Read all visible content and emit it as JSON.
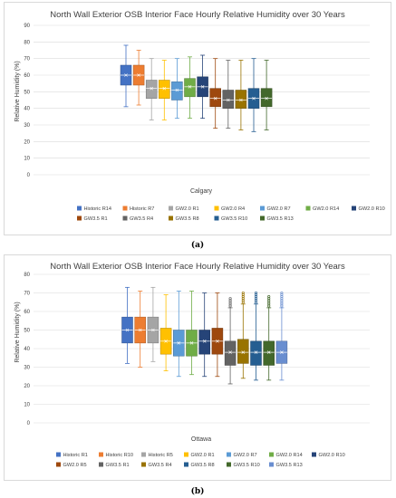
{
  "chart_data": [
    {
      "type": "box",
      "title": "North Wall Exterior OSB Interior Face Hourly Relative Humidity over 30 Years",
      "ylabel": "Relative Humidity (%)",
      "xlabel": "Calgary",
      "ylim": [
        0,
        90
      ],
      "yticks": [
        0,
        10,
        20,
        30,
        40,
        50,
        60,
        70,
        80,
        90
      ],
      "grid": true,
      "legend_position": "bottom",
      "series": [
        {
          "name": "Historic R14",
          "color": "#4472C4",
          "min": 41,
          "q1": 54,
          "median": 60,
          "q3": 66,
          "max": 78,
          "mean": 60
        },
        {
          "name": "Historic R7",
          "color": "#ED7D31",
          "min": 42,
          "q1": 54,
          "median": 60,
          "q3": 66,
          "max": 75,
          "mean": 60
        },
        {
          "name": "GW2.0 R1",
          "color": "#A5A5A5",
          "min": 33,
          "q1": 46,
          "median": 52,
          "q3": 57,
          "max": 70,
          "mean": 52
        },
        {
          "name": "GW2.0 R4",
          "color": "#FFC000",
          "min": 33,
          "q1": 46,
          "median": 52,
          "q3": 57,
          "max": 69,
          "mean": 52
        },
        {
          "name": "GW2.0 R7",
          "color": "#5B9BD5",
          "min": 34,
          "q1": 45,
          "median": 51,
          "q3": 56,
          "max": 70,
          "mean": 51
        },
        {
          "name": "GW2.0 R14",
          "color": "#70AD47",
          "min": 34,
          "q1": 47,
          "median": 53,
          "q3": 58,
          "max": 71,
          "mean": 53
        },
        {
          "name": "GW2.0 R10",
          "color": "#264478",
          "min": 34,
          "q1": 47,
          "median": 53,
          "q3": 59,
          "max": 72,
          "mean": 53
        },
        {
          "name": "GW3.5 R1",
          "color": "#9E480E",
          "min": 28,
          "q1": 41,
          "median": 46,
          "q3": 52,
          "max": 70,
          "mean": 46
        },
        {
          "name": "GW3.5 R4",
          "color": "#636363",
          "min": 28,
          "q1": 40,
          "median": 45,
          "q3": 51,
          "max": 69,
          "mean": 45
        },
        {
          "name": "GW3.5 R8",
          "color": "#997300",
          "min": 27,
          "q1": 40,
          "median": 45,
          "q3": 51,
          "max": 69,
          "mean": 45
        },
        {
          "name": "GW3.5 R10",
          "color": "#255E91",
          "min": 26,
          "q1": 40,
          "median": 46,
          "q3": 52,
          "max": 70,
          "mean": 46
        },
        {
          "name": "GW3.5 R13",
          "color": "#43682B",
          "min": 27,
          "q1": 41,
          "median": 46,
          "q3": 52,
          "max": 69,
          "mean": 46
        }
      ]
    },
    {
      "type": "box",
      "title": "North Wall Exterior OSB Interior Face Hourly Relative Humidity over 30 Years",
      "ylabel": "Relative Humidity (%)",
      "xlabel": "Ottawa",
      "ylim": [
        0,
        80
      ],
      "yticks": [
        0,
        10,
        20,
        30,
        40,
        50,
        60,
        70,
        80
      ],
      "grid": true,
      "legend_position": "bottom",
      "series": [
        {
          "name": "Historic R1",
          "color": "#4472C4",
          "min": 32,
          "q1": 43,
          "median": 50,
          "q3": 57,
          "max": 73,
          "mean": 50
        },
        {
          "name": "Historic R10",
          "color": "#ED7D31",
          "min": 30,
          "q1": 43,
          "median": 50,
          "q3": 57,
          "max": 71,
          "mean": 50
        },
        {
          "name": "Historic R5",
          "color": "#A5A5A5",
          "min": 33,
          "q1": 43,
          "median": 50,
          "q3": 57,
          "max": 73,
          "mean": 50
        },
        {
          "name": "GW2.0 R1",
          "color": "#FFC000",
          "min": 28,
          "q1": 37,
          "median": 44,
          "q3": 51,
          "max": 69,
          "mean": 44
        },
        {
          "name": "GW2.0 R7",
          "color": "#5B9BD5",
          "min": 25,
          "q1": 36,
          "median": 43,
          "q3": 50,
          "max": 71,
          "mean": 43
        },
        {
          "name": "GW2.0 R14",
          "color": "#70AD47",
          "min": 26,
          "q1": 36,
          "median": 43,
          "q3": 50,
          "max": 71,
          "mean": 43
        },
        {
          "name": "GW2.0 R10",
          "color": "#264478",
          "min": 25,
          "q1": 37,
          "median": 44,
          "q3": 50,
          "max": 70,
          "mean": 44
        },
        {
          "name": "GW2.0 R5",
          "color": "#9E480E",
          "min": 25,
          "q1": 37,
          "median": 44,
          "q3": 51,
          "max": 70,
          "mean": 44
        },
        {
          "name": "GW3.5 R1",
          "color": "#636363",
          "min": 21,
          "q1": 31,
          "median": 38,
          "q3": 44,
          "max": 62,
          "mean": 38,
          "outliers": [
            63,
            64,
            65,
            66,
            67
          ]
        },
        {
          "name": "GW3.5 R4",
          "color": "#997300",
          "min": 24,
          "q1": 32,
          "median": 38,
          "q3": 45,
          "max": 64,
          "mean": 38,
          "outliers": [
            65,
            66,
            67,
            68,
            69,
            70
          ]
        },
        {
          "name": "GW3.5 R8",
          "color": "#255E91",
          "min": 23,
          "q1": 31,
          "median": 38,
          "q3": 44,
          "max": 64,
          "mean": 38,
          "outliers": [
            65,
            66,
            67,
            68,
            69,
            70
          ]
        },
        {
          "name": "GW3.5 R10",
          "color": "#43682B",
          "min": 23,
          "q1": 31,
          "median": 38,
          "q3": 44,
          "max": 62,
          "mean": 38,
          "outliers": [
            63,
            64,
            65,
            66,
            67,
            68
          ]
        },
        {
          "name": "GW3.5 R13",
          "color": "#698ED0",
          "min": 23,
          "q1": 32,
          "median": 38,
          "q3": 44,
          "max": 62,
          "mean": 38,
          "outliers": [
            63,
            64,
            65,
            66,
            67,
            68,
            69,
            70
          ]
        }
      ]
    }
  ],
  "captions": [
    "(a)",
    "(b)"
  ]
}
